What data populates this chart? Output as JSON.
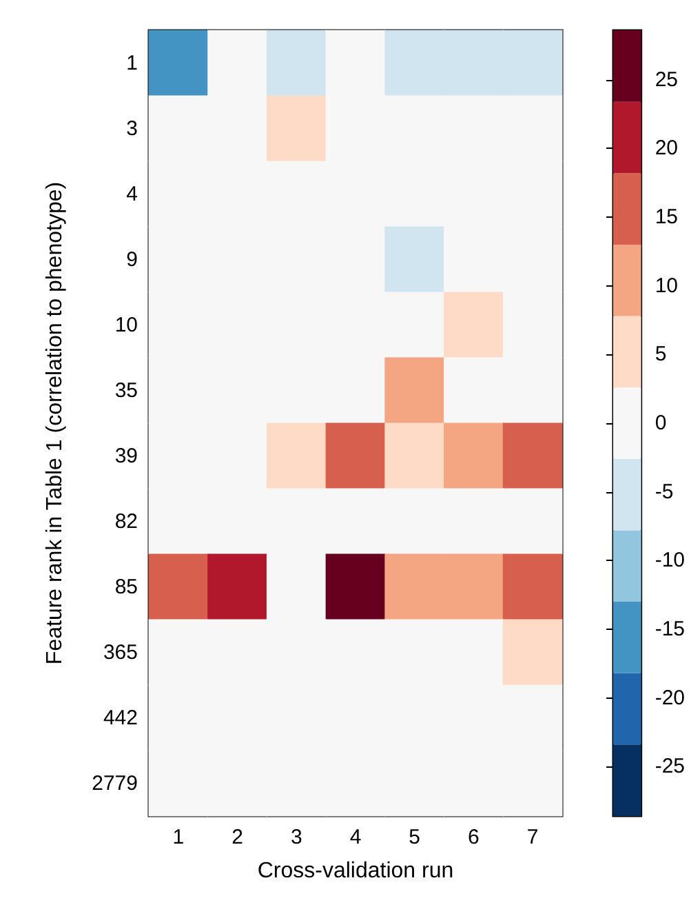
{
  "chart_data": {
    "type": "heatmap",
    "xlabel": "Cross-validation run",
    "ylabel": "Feature rank in Table 1 (correlation to phenotype)",
    "categories": [
      "1",
      "2",
      "3",
      "4",
      "5",
      "6",
      "7"
    ],
    "y_categories": [
      "1",
      "3",
      "4",
      "9",
      "10",
      "35",
      "39",
      "82",
      "85",
      "365",
      "442",
      "2779"
    ],
    "cells": [
      [
        -16,
        0,
        -5,
        0,
        -5,
        -5,
        -5
      ],
      [
        0,
        0,
        5,
        0,
        0,
        0,
        0
      ],
      [
        0,
        0,
        0,
        0,
        0,
        0,
        0
      ],
      [
        0,
        0,
        0,
        0,
        -5,
        0,
        0
      ],
      [
        0,
        0,
        0,
        0,
        0,
        5,
        0
      ],
      [
        0,
        0,
        0,
        0,
        10,
        0,
        0
      ],
      [
        0,
        0,
        5,
        16,
        5,
        10,
        16
      ],
      [
        0,
        0,
        0,
        0,
        0,
        0,
        0
      ],
      [
        16,
        21,
        0,
        26,
        10,
        10,
        16
      ],
      [
        0,
        0,
        0,
        0,
        0,
        0,
        5
      ],
      [
        0,
        0,
        0,
        0,
        0,
        0,
        0
      ],
      [
        0,
        0,
        0,
        0,
        0,
        0,
        0
      ]
    ],
    "clim": [
      -28.6,
      28.6
    ],
    "cticks": [
      -25,
      -20,
      -15,
      -10,
      -5,
      0,
      5,
      10,
      15,
      20,
      25
    ]
  }
}
